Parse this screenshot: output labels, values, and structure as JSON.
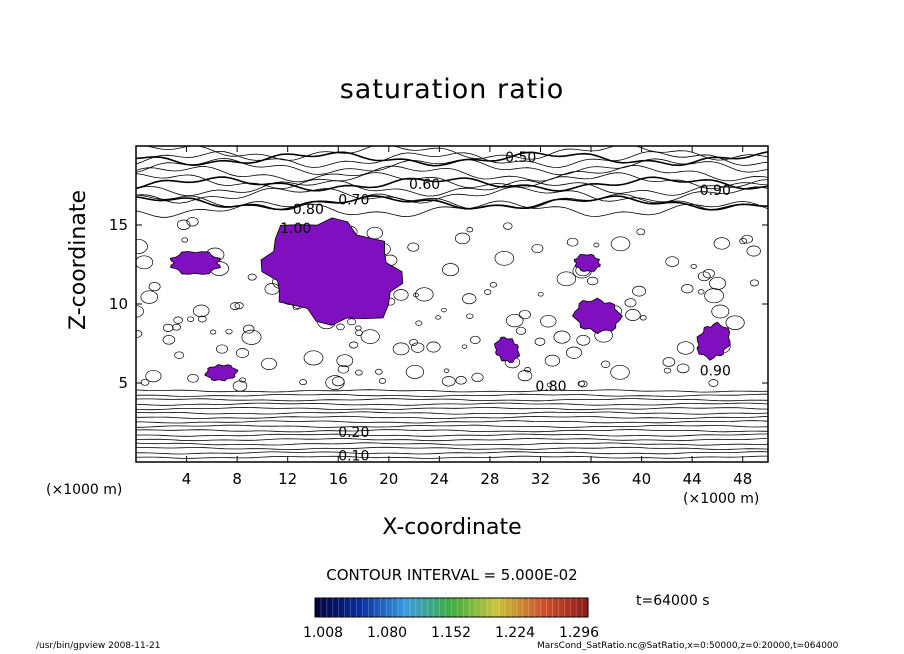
{
  "chart_data": {
    "type": "contour",
    "title": "saturation ratio",
    "xlabel": "X-coordinate",
    "ylabel": "Z-coordinate",
    "x_unit": "(×1000 m)",
    "y_unit": "(×1000 m)",
    "xlim": [
      0,
      50
    ],
    "ylim": [
      0,
      20
    ],
    "x_ticks": [
      4,
      8,
      12,
      16,
      20,
      24,
      28,
      32,
      36,
      40,
      44,
      48
    ],
    "y_ticks": [
      5,
      10,
      15
    ],
    "contour_interval_text": "CONTOUR INTERVAL = 5.000E-02",
    "contour_labels": [
      {
        "text": "0.50",
        "x": 29.2,
        "z": 19.3
      },
      {
        "text": "0.60",
        "x": 21.6,
        "z": 17.6
      },
      {
        "text": "0.90",
        "x": 44.6,
        "z": 17.2
      },
      {
        "text": "0.70",
        "x": 16.0,
        "z": 16.6
      },
      {
        "text": "0.80",
        "x": 12.4,
        "z": 16.0
      },
      {
        "text": "1.00",
        "x": 11.4,
        "z": 14.8
      },
      {
        "text": "0.90",
        "x": 44.6,
        "z": 5.8
      },
      {
        "text": "0.80",
        "x": 31.6,
        "z": 4.8
      },
      {
        "text": "0.20",
        "x": 16.0,
        "z": 1.9
      },
      {
        "text": "0.10",
        "x": 16.0,
        "z": 0.4
      }
    ],
    "shaded_threshold": 1.0,
    "shade_color": "#7f0fbf",
    "supersaturated_regions": [
      {
        "x_range": [
          9,
          22
        ],
        "z_range": [
          8.3,
          15.8
        ]
      },
      {
        "x_range": [
          34.5,
          38.5
        ],
        "z_range": [
          7.9,
          10.6
        ]
      },
      {
        "x_range": [
          44.2,
          47.2
        ],
        "z_range": [
          6.3,
          9.0
        ]
      },
      {
        "x_range": [
          5.4,
          8.1
        ],
        "z_range": [
          5.0,
          6.3
        ]
      },
      {
        "x_range": [
          2.1,
          7.3
        ],
        "z_range": [
          11.8,
          13.4
        ]
      },
      {
        "x_range": [
          28.2,
          30.5
        ],
        "z_range": [
          6.2,
          8.0
        ]
      },
      {
        "x_range": [
          34.4,
          37.0
        ],
        "z_range": [
          12.0,
          13.2
        ]
      }
    ],
    "colorbar": {
      "ticks": [
        "1.008",
        "1.080",
        "1.152",
        "1.224",
        "1.296"
      ],
      "colors": [
        "#04003a",
        "#0a2e9e",
        "#3a9be0",
        "#3fae3f",
        "#c8c43a",
        "#d0522c",
        "#8c1a1a"
      ]
    },
    "time_label": "t=64000 s"
  },
  "footer": {
    "left": "/usr/bin/gpview   2008-11-21",
    "right": "MarsCond_SatRatio.nc@SatRatio,x=0:50000,z=0:20000,t=064000"
  }
}
